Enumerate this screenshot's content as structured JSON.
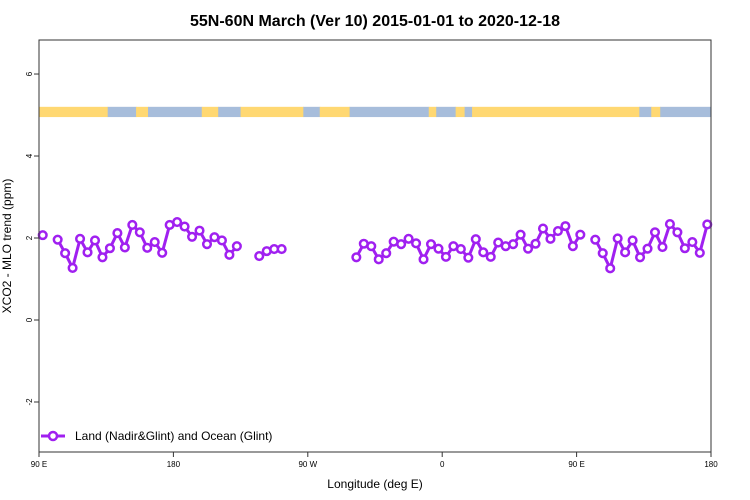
{
  "chart_data": {
    "type": "line",
    "title": "55N-60N March (Ver 10)   2015-01-01 to 2020-12-18",
    "xlabel": "Longitude (deg E)",
    "ylabel": "XCO2 - MLO trend (ppm)",
    "xlim": [
      90,
      540
    ],
    "ylim": [
      -3.22,
      6.83
    ],
    "xticks": [
      90,
      180,
      270,
      360,
      450,
      540
    ],
    "xtick_labels": [
      "90 E",
      "180",
      "90 W",
      "0",
      "90 E",
      "180"
    ],
    "yticks": [
      -2,
      0,
      2,
      4,
      6
    ],
    "ytick_labels": [
      "-2",
      "0",
      "2",
      "4",
      "6"
    ],
    "grid": false,
    "legend_position": "bottom-left",
    "series": [
      {
        "name": "Land (Nadir&Glint) and Ocean (Glint)",
        "color": "#A020F0",
        "marker": "open-circle",
        "bin_width_deg": 5,
        "x": [
          92.5,
          102.5,
          107.5,
          112.5,
          117.5,
          122.5,
          127.5,
          132.5,
          137.5,
          142.5,
          147.5,
          152.5,
          157.5,
          162.5,
          167.5,
          172.5,
          177.5,
          182.5,
          187.5,
          192.5,
          197.5,
          202.5,
          207.5,
          212.5,
          217.5,
          222.5,
          237.5,
          242.5,
          247.5,
          252.5,
          302.5,
          307.5,
          312.5,
          317.5,
          322.5,
          327.5,
          332.5,
          337.5,
          342.5,
          347.5,
          352.5,
          357.5,
          362.5,
          367.5,
          372.5,
          377.5,
          382.5,
          387.5,
          392.5,
          397.5,
          402.5,
          407.5,
          412.5,
          417.5,
          422.5,
          427.5,
          432.5,
          437.5,
          442.5,
          447.5,
          452.5,
          462.5,
          467.5,
          472.5,
          477.5,
          482.5,
          487.5,
          492.5,
          497.5,
          502.5,
          507.5,
          512.5,
          517.5,
          522.5,
          527.5,
          532.5,
          537.5
        ],
        "y": [
          2.07,
          1.96,
          1.63,
          1.27,
          1.98,
          1.65,
          1.94,
          1.53,
          1.75,
          2.12,
          1.77,
          2.32,
          2.14,
          1.76,
          1.9,
          1.64,
          2.32,
          2.39,
          2.28,
          2.03,
          2.18,
          1.85,
          2.02,
          1.94,
          1.59,
          1.8,
          1.56,
          1.68,
          1.73,
          1.73,
          1.53,
          1.86,
          1.8,
          1.48,
          1.63,
          1.91,
          1.85,
          1.98,
          1.87,
          1.48,
          1.85,
          1.74,
          1.54,
          1.8,
          1.73,
          1.52,
          1.97,
          1.65,
          1.54,
          1.89,
          1.8,
          1.85,
          2.08,
          1.74,
          1.86,
          2.23,
          1.98,
          2.17,
          2.29,
          1.8,
          2.08,
          1.96,
          1.63,
          1.26,
          1.99,
          1.65,
          1.94,
          1.53,
          1.74,
          2.14,
          1.78,
          2.34,
          2.14,
          1.75,
          1.9,
          1.64,
          2.33
        ]
      }
    ],
    "surface_strip": {
      "y_range": [
        4.95,
        5.2
      ],
      "colors": {
        "land": "#FFD872",
        "ocean": "#A7BDDB"
      },
      "segments": [
        [
          90,
          136,
          "land"
        ],
        [
          136,
          155,
          "ocean"
        ],
        [
          155,
          163,
          "land"
        ],
        [
          163,
          199,
          "ocean"
        ],
        [
          199,
          210,
          "land"
        ],
        [
          210,
          225,
          "ocean"
        ],
        [
          225,
          267,
          "land"
        ],
        [
          267,
          278,
          "ocean"
        ],
        [
          278,
          298,
          "land"
        ],
        [
          298,
          351,
          "ocean"
        ],
        [
          351,
          356,
          "land"
        ],
        [
          356,
          369,
          "ocean"
        ],
        [
          369,
          375,
          "land"
        ],
        [
          375,
          380,
          "ocean"
        ],
        [
          380,
          492,
          "land"
        ],
        [
          492,
          500,
          "ocean"
        ],
        [
          500,
          506,
          "land"
        ],
        [
          506,
          540,
          "ocean"
        ]
      ]
    }
  }
}
